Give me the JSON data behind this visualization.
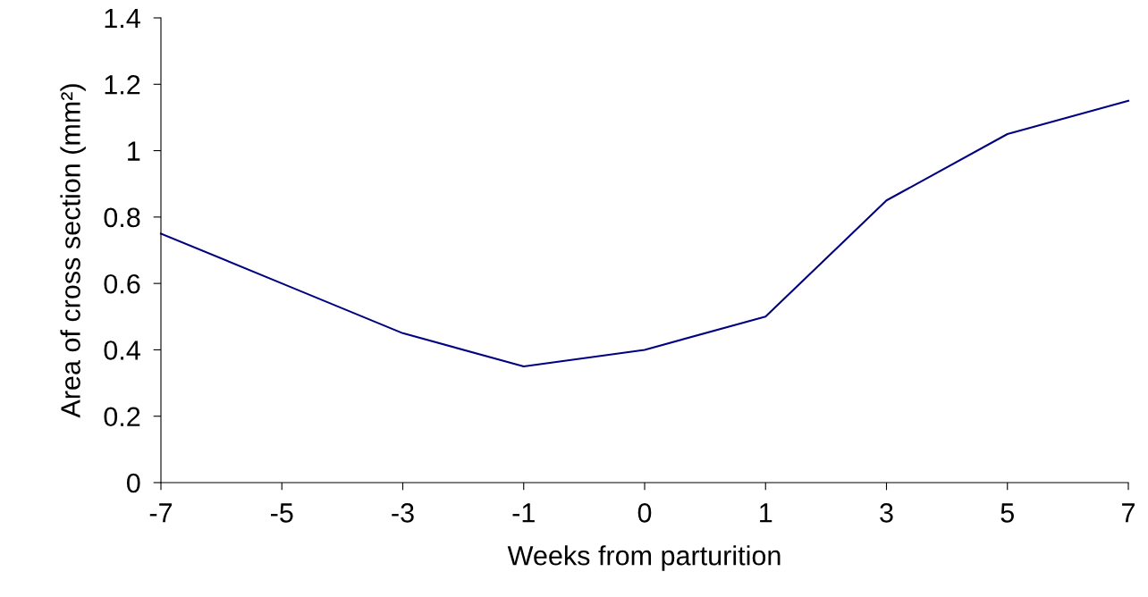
{
  "chart_data": {
    "type": "line",
    "xlabel": "Weeks from parturition",
    "ylabel": "Area of cross section (mm²)",
    "categories": [
      "-7",
      "-5",
      "-3",
      "-1",
      "0",
      "1",
      "3",
      "5",
      "7"
    ],
    "series": [
      {
        "color": "#000080",
        "values": [
          0.75,
          0.6,
          0.45,
          0.35,
          0.4,
          0.5,
          0.85,
          1.05,
          1.15
        ]
      }
    ],
    "ylim": [
      0,
      1.4
    ],
    "yticks": [
      0,
      0.2,
      0.4,
      0.6,
      0.8,
      1,
      1.2,
      1.4
    ],
    "grid": false,
    "marker": "none",
    "line_style": "solid"
  }
}
